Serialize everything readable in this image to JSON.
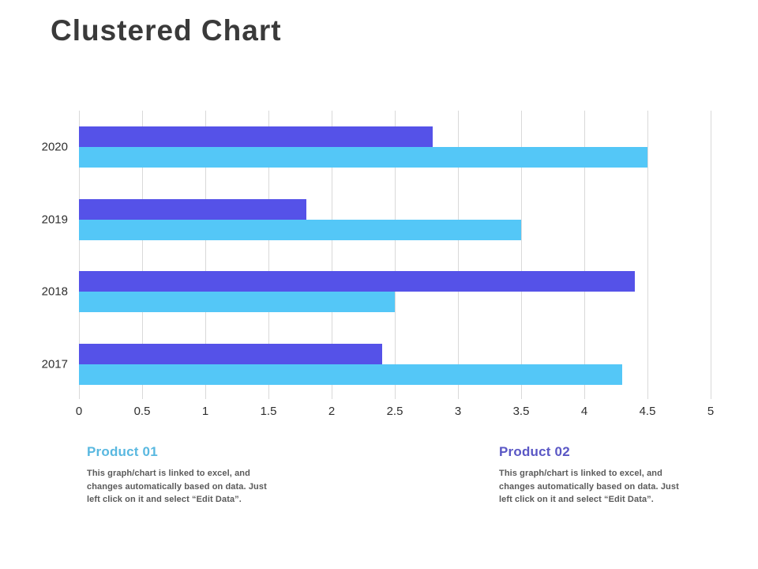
{
  "title": "Clustered Chart",
  "chart_data": {
    "type": "bar",
    "orientation": "horizontal",
    "title": "Clustered Chart",
    "categories": [
      "2020",
      "2019",
      "2018",
      "2017"
    ],
    "series": [
      {
        "name": "Product 02",
        "color": "#5552e8",
        "values": [
          2.8,
          1.8,
          4.4,
          2.4
        ]
      },
      {
        "name": "Product 01",
        "color": "#54c7f7",
        "values": [
          4.5,
          3.5,
          2.5,
          4.3
        ]
      }
    ],
    "xlim": [
      0,
      5
    ],
    "xticks": [
      0,
      0.5,
      1,
      1.5,
      2,
      2.5,
      3,
      3.5,
      4,
      4.5,
      5
    ],
    "xtick_labels": [
      "0",
      "0.5",
      "1",
      "1.5",
      "2",
      "2.5",
      "3",
      "3.5",
      "4",
      "4.5",
      "5"
    ],
    "grid": "vertical",
    "gridline_color": "#d9d9d9",
    "legend_position": "below"
  },
  "legend": [
    {
      "title": "Product 01",
      "color": "#59b8e0",
      "description": "This graph/chart is linked to excel, and changes automatically based on data. Just left click on it and select “Edit Data”."
    },
    {
      "title": "Product 02",
      "color": "#5a57c5",
      "description": "This graph/chart is linked to excel, and changes automatically based on data. Just left click on it and select “Edit Data”."
    }
  ]
}
